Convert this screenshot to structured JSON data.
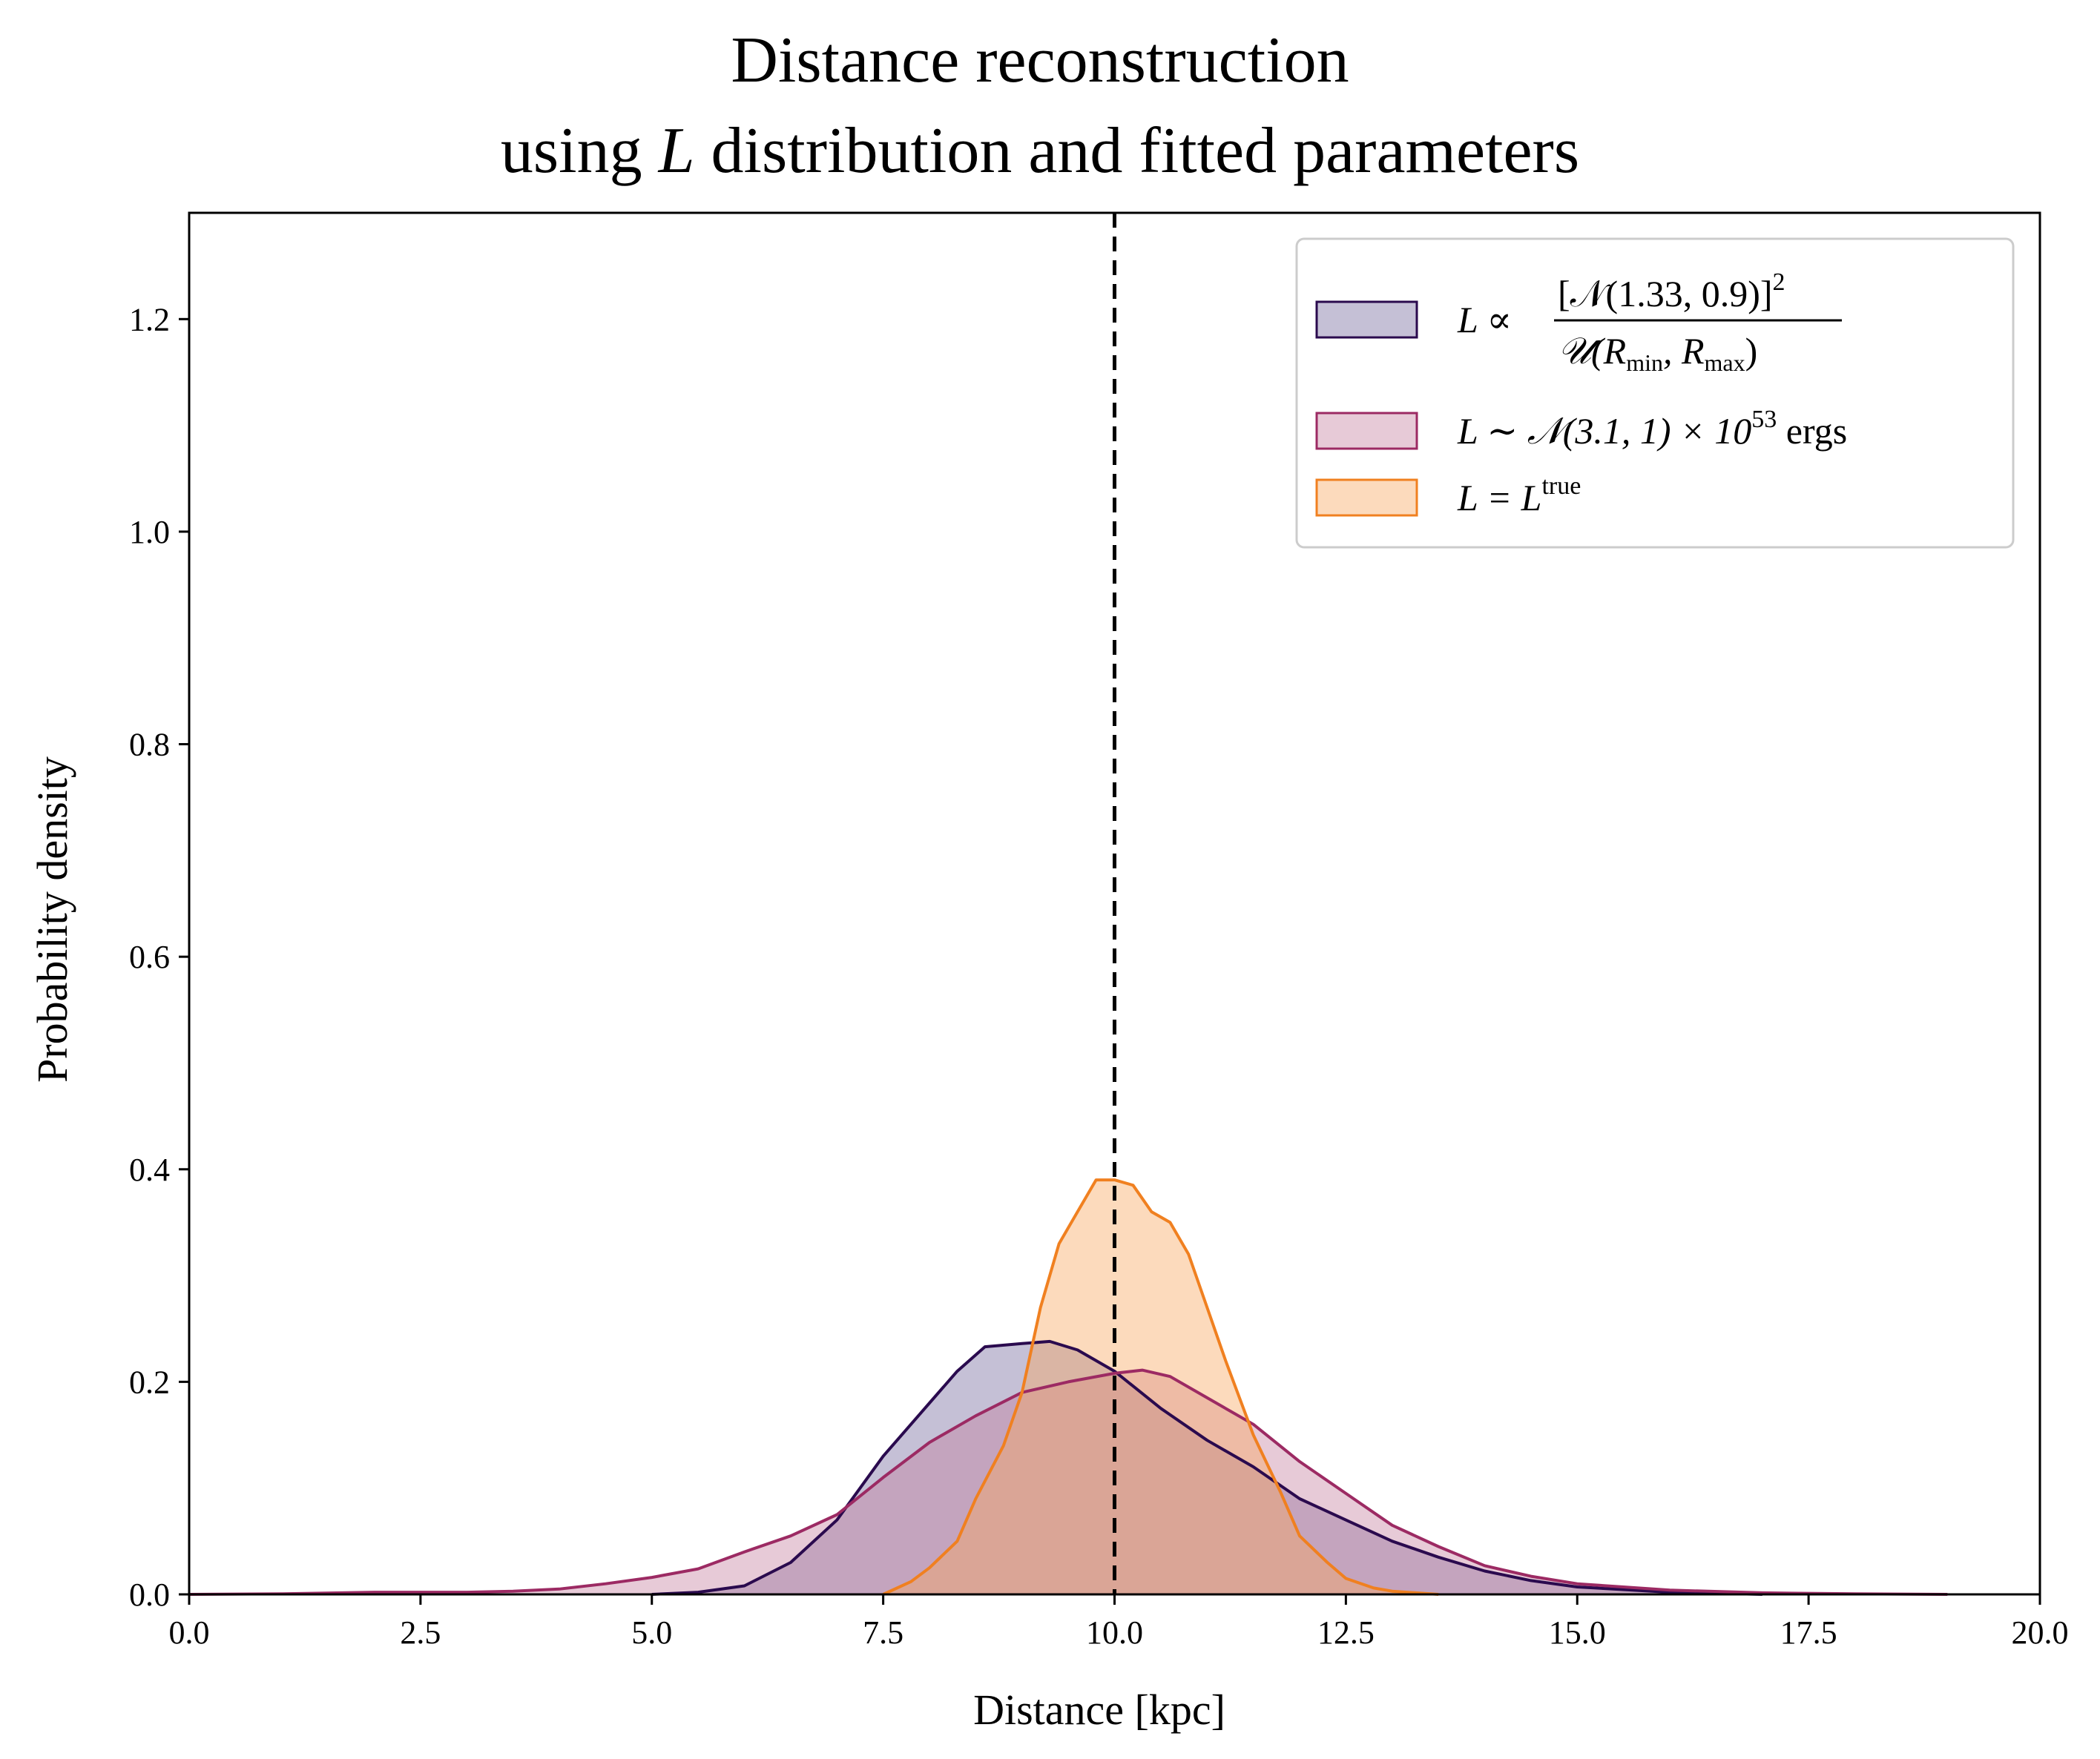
{
  "chart_data": {
    "type": "area",
    "title": "Distance reconstruction",
    "subtitle_prefix": "using",
    "subtitle_var": "L",
    "subtitle_suffix": "distribution and fitted parameters",
    "xlabel": "Distance [kpc]",
    "ylabel": "Probability density",
    "xlim": [
      0.0,
      20.0
    ],
    "ylim": [
      0.0,
      1.3
    ],
    "x_ticks": [
      0.0,
      2.5,
      5.0,
      7.5,
      10.0,
      12.5,
      15.0,
      17.5,
      20.0
    ],
    "x_tick_labels": [
      "0.0",
      "2.5",
      "5.0",
      "7.5",
      "10.0",
      "12.5",
      "15.0",
      "17.5",
      "20.0"
    ],
    "y_ticks": [
      0.0,
      0.2,
      0.4,
      0.6,
      0.8,
      1.0,
      1.2
    ],
    "y_tick_labels": [
      "0.0",
      "0.2",
      "0.4",
      "0.6",
      "0.8",
      "1.0",
      "1.2"
    ],
    "grid": false,
    "legend_position": "top-right",
    "vline": {
      "x": 10.0,
      "style": "dashed",
      "color": "#000000"
    },
    "series": [
      {
        "legend": {
          "lhs": "L ∝",
          "num": "[𝒩(1.33, 0.9)]",
          "num_sup": "2",
          "den_pre": "𝒰(R",
          "den_sub1": "min",
          "den_mid": ", R",
          "den_sub2": "max",
          "den_post": ")"
        },
        "color": "#2a0a4e",
        "fill": "#5a4a8a",
        "fill_opacity": 0.35,
        "x": [
          5.0,
          5.5,
          6.0,
          6.5,
          7.0,
          7.5,
          8.0,
          8.3,
          8.6,
          9.0,
          9.3,
          9.6,
          10.0,
          10.5,
          11.0,
          11.5,
          12.0,
          12.5,
          13.0,
          13.5,
          14.0,
          14.5,
          15.0,
          16.0,
          17.0
        ],
        "y": [
          0.0,
          0.002,
          0.008,
          0.03,
          0.07,
          0.13,
          0.18,
          0.21,
          0.233,
          0.236,
          0.238,
          0.23,
          0.21,
          0.175,
          0.145,
          0.12,
          0.09,
          0.07,
          0.05,
          0.035,
          0.022,
          0.013,
          0.007,
          0.002,
          0.0
        ]
      },
      {
        "legend": {
          "lhs": "L ∼ 𝒩(3.1, 1) × 10",
          "sup": "53",
          "unit": "ergs"
        },
        "color": "#9c2a63",
        "fill": "#c47a9a",
        "fill_opacity": 0.4,
        "x": [
          0.0,
          1.0,
          2.0,
          3.0,
          3.5,
          4.0,
          4.5,
          5.0,
          5.5,
          6.0,
          6.5,
          7.0,
          7.5,
          8.0,
          8.5,
          9.0,
          9.5,
          10.0,
          10.3,
          10.6,
          11.0,
          11.5,
          12.0,
          12.5,
          13.0,
          13.5,
          14.0,
          14.5,
          15.0,
          16.0,
          17.0,
          18.0,
          19.0
        ],
        "y": [
          0.0,
          0.0005,
          0.002,
          0.002,
          0.003,
          0.005,
          0.01,
          0.016,
          0.024,
          0.04,
          0.055,
          0.075,
          0.11,
          0.143,
          0.168,
          0.19,
          0.2,
          0.208,
          0.211,
          0.205,
          0.185,
          0.16,
          0.125,
          0.095,
          0.065,
          0.045,
          0.027,
          0.017,
          0.01,
          0.004,
          0.0015,
          0.0005,
          0.0
        ]
      },
      {
        "legend": {
          "lhs": "L = L",
          "sup": "true"
        },
        "color": "#f08020",
        "fill": "#f7a860",
        "fill_opacity": 0.42,
        "x": [
          7.5,
          7.8,
          8.0,
          8.3,
          8.5,
          8.8,
          9.0,
          9.2,
          9.4,
          9.6,
          9.8,
          10.0,
          10.2,
          10.4,
          10.6,
          10.8,
          11.0,
          11.2,
          11.5,
          11.8,
          12.0,
          12.3,
          12.5,
          12.8,
          13.0,
          13.5
        ],
        "y": [
          0.0,
          0.012,
          0.025,
          0.05,
          0.09,
          0.14,
          0.19,
          0.27,
          0.33,
          0.36,
          0.39,
          0.39,
          0.385,
          0.36,
          0.35,
          0.32,
          0.27,
          0.22,
          0.15,
          0.095,
          0.055,
          0.03,
          0.015,
          0.006,
          0.003,
          0.0
        ]
      }
    ]
  }
}
